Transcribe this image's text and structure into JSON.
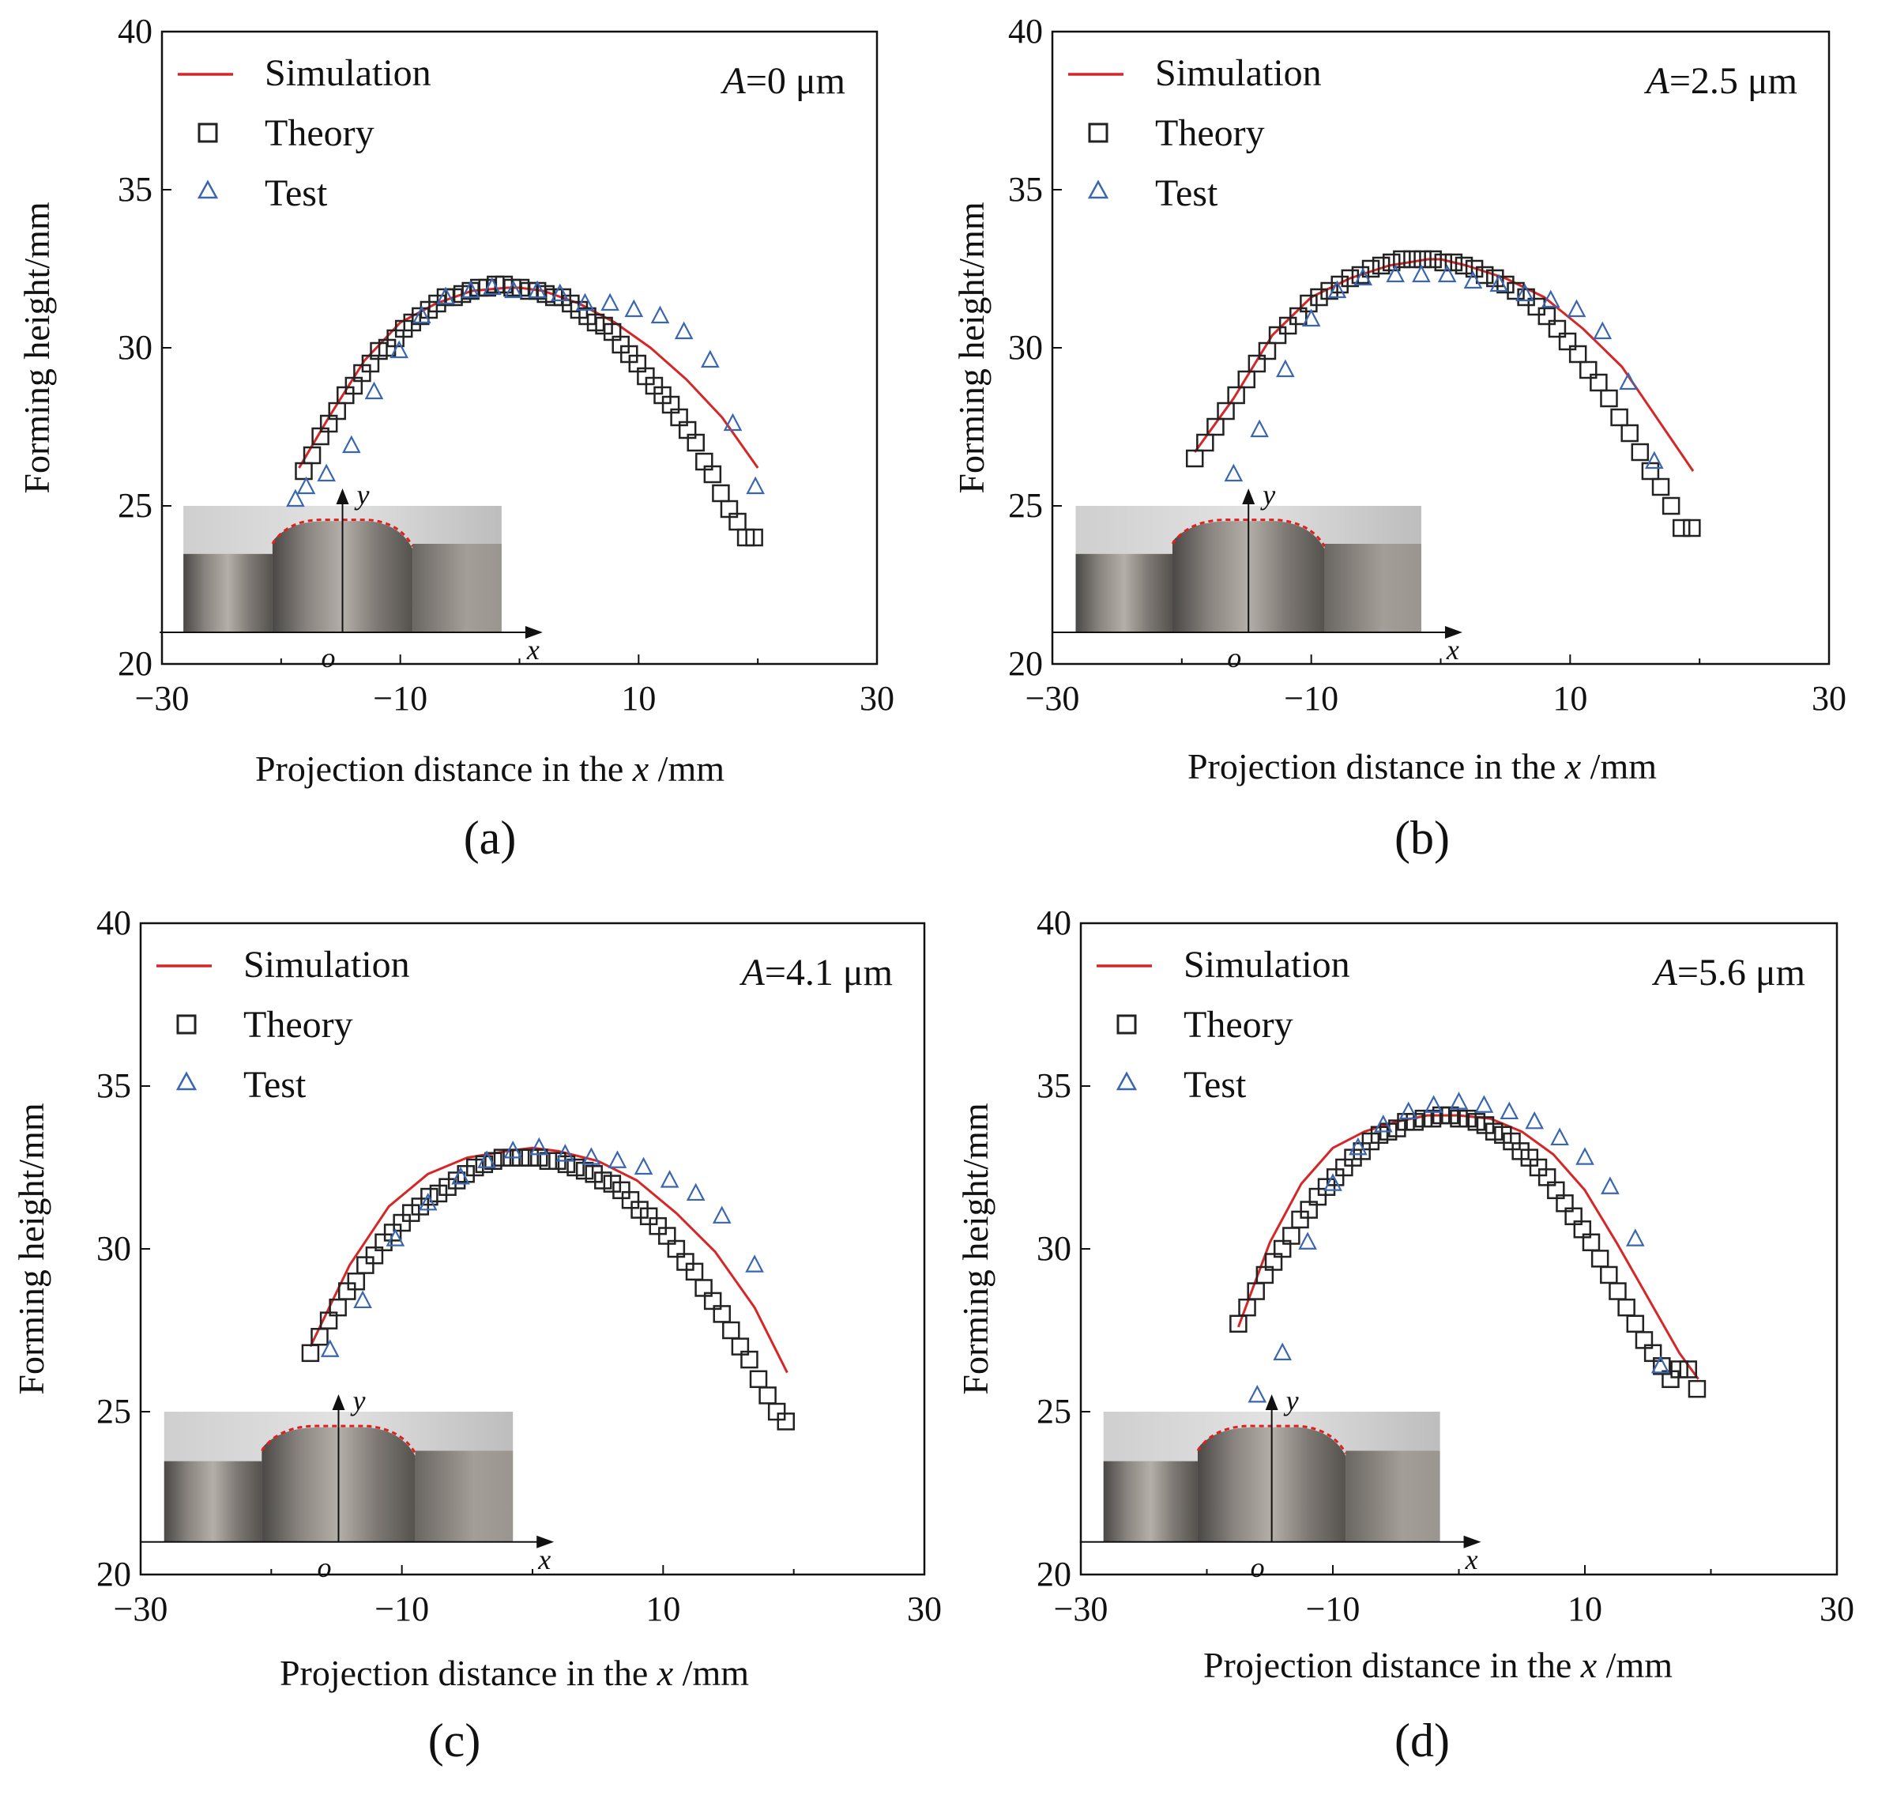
{
  "figure": {
    "colors": {
      "simulation": "#d62728",
      "theory": "#222222",
      "test": "#3a66b0"
    },
    "inset_axis_labels": {
      "x": "x",
      "y": "y",
      "origin": "o"
    }
  },
  "chart_data": [
    {
      "type": "line",
      "panel_label": "(a)",
      "annotation_prefix": "A",
      "annotation_value": "=0 μm",
      "xlabel_prefix": "Projection distance in the ",
      "xlabel_var": "x",
      "xlabel_suffix": " /mm",
      "ylabel": "Forming height/mm",
      "xlim": [
        -30,
        30
      ],
      "ylim": [
        20,
        40
      ],
      "xticks": [
        "−30",
        "−10",
        "10",
        "30"
      ],
      "yticks": [
        "20",
        "25",
        "30",
        "35",
        "40"
      ],
      "legend": [
        "Simulation",
        "Theory",
        "Test"
      ],
      "series": [
        {
          "name": "Simulation",
          "style": "line",
          "x": [
            -18.5,
            -16,
            -13,
            -10,
            -7,
            -4,
            -1,
            0,
            2,
            5,
            8,
            11,
            14,
            17,
            20
          ],
          "y": [
            26.2,
            27.8,
            29.6,
            30.8,
            31.4,
            31.8,
            31.9,
            31.9,
            31.8,
            31.4,
            30.8,
            30.0,
            29.0,
            27.8,
            26.2
          ]
        },
        {
          "name": "Theory",
          "style": "square",
          "x": [
            -18.1,
            -17.4,
            -16.7,
            -16.0,
            -15.3,
            -14.6,
            -13.9,
            -13.2,
            -12.5,
            -11.8,
            -11.1,
            -10.4,
            -9.7,
            -9.0,
            -8.3,
            -7.6,
            -6.9,
            -6.2,
            -5.5,
            -4.8,
            -4.1,
            -3.4,
            -2.7,
            -2.0,
            -1.3,
            -0.6,
            0.1,
            0.8,
            1.5,
            2.2,
            2.9,
            3.6,
            4.3,
            5.0,
            5.7,
            6.4,
            7.1,
            7.8,
            8.5,
            9.2,
            9.9,
            10.6,
            11.3,
            12.0,
            12.7,
            13.4,
            14.1,
            14.8,
            15.5,
            16.2,
            16.9,
            17.6,
            18.3,
            19.0,
            19.7
          ],
          "y": [
            26.1,
            26.6,
            27.2,
            27.6,
            28.0,
            28.5,
            28.8,
            29.2,
            29.5,
            29.9,
            30.0,
            30.3,
            30.6,
            30.8,
            31.0,
            31.2,
            31.4,
            31.6,
            31.6,
            31.7,
            31.8,
            31.9,
            31.9,
            32.0,
            32.0,
            31.9,
            31.9,
            31.8,
            31.8,
            31.7,
            31.6,
            31.6,
            31.4,
            31.2,
            31.0,
            30.8,
            30.7,
            30.5,
            30.1,
            29.8,
            29.5,
            29.1,
            28.8,
            28.5,
            28.2,
            27.8,
            27.4,
            27.0,
            26.4,
            26.0,
            25.4,
            24.9,
            24.5,
            24.0,
            24.0
          ]
        },
        {
          "name": "Test",
          "style": "triangle",
          "x": [
            -18.8,
            -17.9,
            -16.2,
            -14.1,
            -12.2,
            -10.1,
            -8.2,
            -6.2,
            -4.1,
            -2.3,
            -0.5,
            1.5,
            3.4,
            5.5,
            7.6,
            9.6,
            11.8,
            13.8,
            16.0,
            17.9,
            19.8
          ],
          "y": [
            25.2,
            25.6,
            26.0,
            26.9,
            28.6,
            29.9,
            31.0,
            31.6,
            31.8,
            31.9,
            31.8,
            31.8,
            31.7,
            31.4,
            31.4,
            31.2,
            31.0,
            30.5,
            29.6,
            27.6,
            25.6
          ]
        }
      ]
    },
    {
      "type": "line",
      "panel_label": "(b)",
      "annotation_prefix": "A",
      "annotation_value": "=2.5 μm",
      "xlabel_prefix": "Projection distance in the ",
      "xlabel_var": "x",
      "xlabel_suffix": " /mm",
      "ylabel": "Forming height/mm",
      "xlim": [
        -30,
        30
      ],
      "ylim": [
        20,
        40
      ],
      "xticks": [
        "−30",
        "−10",
        "10",
        "30"
      ],
      "yticks": [
        "20",
        "25",
        "30",
        "35",
        "40"
      ],
      "legend": [
        "Simulation",
        "Theory",
        "Test"
      ],
      "series": [
        {
          "name": "Simulation",
          "style": "line",
          "x": [
            -19,
            -16,
            -13,
            -10,
            -7,
            -4,
            -1,
            0,
            2,
            5,
            8,
            11,
            14,
            17,
            19.5
          ],
          "y": [
            26.7,
            28.4,
            30.4,
            31.6,
            32.2,
            32.6,
            32.8,
            32.8,
            32.6,
            32.2,
            31.6,
            30.6,
            29.4,
            27.6,
            26.1
          ]
        },
        {
          "name": "Theory",
          "style": "square",
          "x": [
            -19.0,
            -18.2,
            -17.4,
            -16.6,
            -15.8,
            -15.0,
            -14.2,
            -13.4,
            -12.6,
            -11.8,
            -11.0,
            -10.2,
            -9.4,
            -8.6,
            -7.8,
            -7.0,
            -6.2,
            -5.4,
            -4.6,
            -3.8,
            -3.0,
            -2.2,
            -1.4,
            -0.6,
            0.2,
            1.0,
            1.8,
            2.6,
            3.4,
            4.2,
            5.0,
            5.8,
            6.6,
            7.4,
            8.2,
            9.0,
            9.8,
            10.6,
            11.4,
            12.2,
            13.0,
            13.8,
            14.6,
            15.4,
            16.2,
            17.0,
            17.8,
            18.6,
            19.4
          ],
          "y": [
            26.5,
            27.0,
            27.5,
            28.0,
            28.5,
            29.0,
            29.5,
            29.9,
            30.4,
            30.7,
            31.0,
            31.4,
            31.6,
            31.8,
            32.0,
            32.2,
            32.3,
            32.5,
            32.6,
            32.7,
            32.8,
            32.8,
            32.8,
            32.8,
            32.7,
            32.7,
            32.6,
            32.5,
            32.3,
            32.2,
            32.0,
            31.8,
            31.6,
            31.3,
            31.0,
            30.6,
            30.2,
            29.8,
            29.3,
            28.9,
            28.4,
            27.8,
            27.3,
            26.7,
            26.1,
            25.6,
            25.0,
            24.3,
            24.3
          ]
        },
        {
          "name": "Test",
          "style": "triangle",
          "x": [
            -16.0,
            -14.0,
            -12.0,
            -10.0,
            -8.0,
            -6.0,
            -3.5,
            -1.5,
            0.5,
            2.5,
            4.5,
            6.5,
            8.5,
            10.5,
            12.5,
            14.5,
            16.5
          ],
          "y": [
            26.0,
            27.4,
            29.3,
            30.9,
            31.8,
            32.2,
            32.3,
            32.3,
            32.3,
            32.1,
            32.0,
            31.7,
            31.5,
            31.2,
            30.5,
            28.9,
            26.4
          ]
        }
      ]
    },
    {
      "type": "line",
      "panel_label": "(c)",
      "annotation_prefix": "A",
      "annotation_value": "=4.1 μm",
      "xlabel_prefix": "Projection distance in the ",
      "xlabel_var": "x",
      "xlabel_suffix": " /mm",
      "ylabel": "Forming height/mm",
      "xlim": [
        -30,
        30
      ],
      "ylim": [
        20,
        40
      ],
      "xticks": [
        "−30",
        "−10",
        "10",
        "30"
      ],
      "yticks": [
        "20",
        "25",
        "30",
        "35",
        "40"
      ],
      "legend": [
        "Simulation",
        "Theory",
        "Test"
      ],
      "series": [
        {
          "name": "Simulation",
          "style": "line",
          "x": [
            -17,
            -14,
            -11,
            -8,
            -5,
            -2,
            0,
            2,
            5,
            8,
            11,
            14,
            17,
            19.5
          ],
          "y": [
            27.0,
            29.5,
            31.3,
            32.3,
            32.8,
            33.0,
            33.1,
            33.0,
            32.7,
            32.1,
            31.1,
            29.9,
            28.2,
            26.2
          ]
        },
        {
          "name": "Theory",
          "style": "square",
          "x": [
            -17.0,
            -16.3,
            -15.6,
            -14.9,
            -14.2,
            -13.5,
            -12.8,
            -12.1,
            -11.4,
            -10.7,
            -10.0,
            -9.3,
            -8.6,
            -7.9,
            -7.2,
            -6.5,
            -5.8,
            -5.1,
            -4.4,
            -3.7,
            -3.0,
            -2.3,
            -1.6,
            -0.9,
            -0.2,
            0.5,
            1.2,
            1.9,
            2.6,
            3.3,
            4.0,
            4.7,
            5.4,
            6.1,
            6.8,
            7.5,
            8.2,
            8.9,
            9.6,
            10.3,
            11.0,
            11.7,
            12.4,
            13.1,
            13.8,
            14.5,
            15.2,
            15.9,
            16.6,
            17.3,
            18.0,
            18.7,
            19.4
          ],
          "y": [
            26.8,
            27.3,
            27.8,
            28.2,
            28.7,
            29.0,
            29.5,
            29.8,
            30.2,
            30.5,
            30.8,
            31.1,
            31.3,
            31.6,
            31.7,
            31.9,
            32.1,
            32.3,
            32.5,
            32.6,
            32.7,
            32.8,
            32.8,
            32.8,
            32.8,
            32.8,
            32.7,
            32.7,
            32.6,
            32.5,
            32.4,
            32.3,
            32.1,
            32.0,
            31.8,
            31.5,
            31.2,
            31.0,
            30.7,
            30.4,
            30.0,
            29.6,
            29.3,
            28.8,
            28.4,
            28.0,
            27.5,
            27.0,
            26.6,
            26.0,
            25.5,
            25.0,
            24.7
          ]
        },
        {
          "name": "Test",
          "style": "triangle",
          "x": [
            -15.5,
            -13.0,
            -10.5,
            -8.0,
            -5.5,
            -3.5,
            -1.5,
            0.5,
            2.5,
            4.5,
            6.5,
            8.5,
            10.5,
            12.5,
            14.5,
            17.0
          ],
          "y": [
            26.9,
            28.4,
            30.3,
            31.4,
            32.2,
            32.7,
            33.0,
            33.1,
            32.9,
            32.8,
            32.7,
            32.5,
            32.1,
            31.7,
            31.0,
            29.5
          ]
        }
      ]
    },
    {
      "type": "line",
      "panel_label": "(d)",
      "annotation_prefix": "A",
      "annotation_value": "=5.6 μm",
      "xlabel_prefix": "Projection distance in the ",
      "xlabel_var": "x",
      "xlabel_suffix": " /mm",
      "ylabel": "Forming height/mm",
      "xlim": [
        -30,
        30
      ],
      "ylim": [
        20,
        40
      ],
      "xticks": [
        "−30",
        "−10",
        "10",
        "30"
      ],
      "yticks": [
        "20",
        "25",
        "30",
        "35",
        "40"
      ],
      "legend": [
        "Simulation",
        "Theory",
        "Test"
      ],
      "series": [
        {
          "name": "Simulation",
          "style": "line",
          "x": [
            -17.5,
            -15,
            -12.5,
            -10,
            -7.5,
            -5,
            -2.5,
            0,
            2.5,
            5,
            7.5,
            10,
            12.5,
            15,
            17.5,
            19
          ],
          "y": [
            27.6,
            30.2,
            32.0,
            33.1,
            33.6,
            33.9,
            34.1,
            34.1,
            34.0,
            33.6,
            32.9,
            31.8,
            30.2,
            28.5,
            26.8,
            26.0
          ]
        },
        {
          "name": "Theory",
          "style": "square",
          "x": [
            -17.5,
            -16.8,
            -16.1,
            -15.4,
            -14.7,
            -14.0,
            -13.3,
            -12.6,
            -11.9,
            -11.2,
            -10.5,
            -9.8,
            -9.1,
            -8.4,
            -7.7,
            -7.0,
            -6.3,
            -5.6,
            -4.9,
            -4.2,
            -3.5,
            -2.8,
            -2.1,
            -1.4,
            -0.7,
            0.0,
            0.7,
            1.4,
            2.1,
            2.8,
            3.5,
            4.2,
            4.9,
            5.6,
            6.3,
            7.0,
            7.7,
            8.4,
            9.1,
            9.8,
            10.5,
            11.2,
            11.9,
            12.6,
            13.3,
            14.0,
            14.7,
            15.4,
            16.1,
            16.8,
            17.5,
            18.2,
            18.9
          ],
          "y": [
            27.7,
            28.2,
            28.7,
            29.2,
            29.6,
            30.0,
            30.4,
            30.9,
            31.2,
            31.6,
            31.9,
            32.2,
            32.5,
            32.8,
            33.0,
            33.3,
            33.5,
            33.6,
            33.7,
            33.9,
            33.9,
            34.0,
            34.0,
            34.1,
            34.1,
            34.0,
            34.0,
            33.9,
            33.8,
            33.6,
            33.5,
            33.3,
            33.0,
            32.8,
            32.5,
            32.2,
            31.8,
            31.4,
            31.0,
            30.6,
            30.2,
            29.7,
            29.2,
            28.7,
            28.2,
            27.7,
            27.2,
            26.8,
            26.4,
            26.0,
            26.3,
            26.3,
            25.7
          ]
        },
        {
          "name": "Test",
          "style": "triangle",
          "x": [
            -16.0,
            -14.0,
            -12.0,
            -10.0,
            -8.0,
            -6.0,
            -4.0,
            -2.0,
            0.0,
            2.0,
            4.0,
            6.0,
            8.0,
            10.0,
            12.0,
            14.0,
            16.0
          ],
          "y": [
            25.5,
            26.8,
            30.2,
            32.0,
            33.1,
            33.8,
            34.2,
            34.4,
            34.5,
            34.4,
            34.2,
            33.9,
            33.4,
            32.8,
            31.9,
            30.3,
            26.4
          ]
        }
      ]
    }
  ]
}
